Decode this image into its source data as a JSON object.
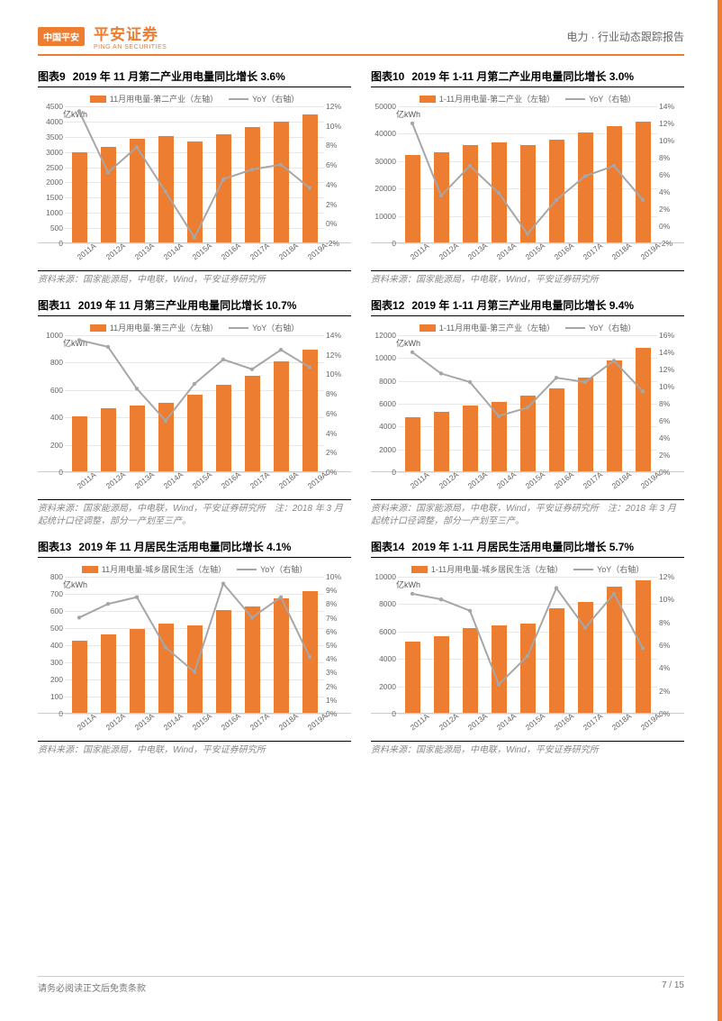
{
  "header": {
    "badge": "中国平安",
    "brand_cn": "平安证券",
    "brand_en": "PING AN SECURITIES",
    "right": "电力 · 行业动态跟踪报告"
  },
  "colors": {
    "accent": "#ed7d31",
    "line": "#a6a6a6",
    "grid": "#e8e8e8",
    "text": "#666"
  },
  "x_categories": [
    "2011A",
    "2012A",
    "2013A",
    "2014A",
    "2015A",
    "2016A",
    "2017A",
    "2018A",
    "2019A"
  ],
  "charts": [
    {
      "num": "图表9",
      "title": "2019 年 11 月第二产业用电量同比增长 3.6%",
      "legend_bar": "11月用电量-第二产业（左轴）",
      "legend_line": "YoY（右轴）",
      "unit": "亿kWh",
      "yl": {
        "min": 0,
        "max": 4500,
        "step": 500,
        "fmt": "{v}"
      },
      "yr": {
        "min": -2,
        "max": 12,
        "step": 2,
        "fmt": "{v}%"
      },
      "bars": [
        2950,
        3140,
        3400,
        3480,
        3320,
        3560,
        3800,
        3980,
        4200
      ],
      "line": [
        11.5,
        5.2,
        7.8,
        3.2,
        -1.5,
        4.5,
        5.5,
        6.0,
        3.6
      ],
      "source": "资料来源：国家能源局，中电联，Wind，平安证券研究所"
    },
    {
      "num": "图表10",
      "title": "2019 年 1-11 月第二产业用电量同比增长 3.0%",
      "legend_bar": "1-11月用电量-第二产业（左轴）",
      "legend_line": "YoY（右轴）",
      "unit": "亿kWh",
      "yl": {
        "min": 0,
        "max": 50000,
        "step": 10000,
        "fmt": "{v}"
      },
      "yr": {
        "min": -2,
        "max": 14,
        "step": 2,
        "fmt": "{v}%"
      },
      "bars": [
        32000,
        33000,
        35500,
        36500,
        35500,
        37500,
        40000,
        42500,
        44000
      ],
      "line": [
        12.0,
        3.5,
        7.0,
        3.8,
        -1.0,
        3.0,
        5.8,
        7.0,
        3.0
      ],
      "source": "资料来源：国家能源局，中电联，Wind，平安证券研究所"
    },
    {
      "num": "图表11",
      "title": "2019 年 11 月第三产业用电量同比增长 10.7%",
      "legend_bar": "11月用电量-第三产业（左轴）",
      "legend_line": "YoY（右轴）",
      "unit": "亿kWh",
      "yl": {
        "min": 0,
        "max": 1000,
        "step": 200,
        "fmt": "{v}"
      },
      "yr": {
        "min": 0,
        "max": 14,
        "step": 2,
        "fmt": "{v}%"
      },
      "bars": [
        400,
        460,
        480,
        500,
        560,
        630,
        700,
        800,
        890
      ],
      "line": [
        13.5,
        12.8,
        8.5,
        5.2,
        9.0,
        11.5,
        10.5,
        12.5,
        10.7
      ],
      "source": "资料来源：国家能源局，中电联，Wind，平安证券研究所　注：2018 年 3 月起统计口径调整，部分一产划至三产。"
    },
    {
      "num": "图表12",
      "title": "2019 年 1-11 月第三产业用电量同比增长 9.4%",
      "legend_bar": "1-11月用电量-第三产业（左轴）",
      "legend_line": "YoY（右轴）",
      "unit": "亿kWh",
      "yl": {
        "min": 0,
        "max": 12000,
        "step": 2000,
        "fmt": "{v}"
      },
      "yr": {
        "min": 0,
        "max": 16,
        "step": 2,
        "fmt": "{v}%"
      },
      "bars": [
        4700,
        5200,
        5800,
        6100,
        6600,
        7300,
        8200,
        9700,
        10800
      ],
      "line": [
        14.0,
        11.5,
        10.5,
        6.5,
        7.5,
        11.0,
        10.5,
        13.0,
        9.4
      ],
      "source": "资料来源：国家能源局，中电联，Wind，平安证券研究所　注：2018 年 3 月起统计口径调整，部分一产划至三产。"
    },
    {
      "num": "图表13",
      "title": "2019 年 11 月居民生活用电量同比增长 4.1%",
      "legend_bar": "11月用电量-城乡居民生活（左轴）",
      "legend_line": "YoY（右轴）",
      "unit": "亿kWh",
      "yl": {
        "min": 0,
        "max": 800,
        "step": 100,
        "fmt": "{v}"
      },
      "yr": {
        "min": 0,
        "max": 10,
        "step": 1,
        "fmt": "{v}%"
      },
      "bars": [
        420,
        460,
        490,
        520,
        510,
        600,
        620,
        670,
        710
      ],
      "line": [
        7.0,
        8.0,
        8.5,
        4.8,
        3.0,
        9.5,
        7.0,
        8.5,
        4.1
      ],
      "source": "资料来源：国家能源局，中电联，Wind，平安证券研究所"
    },
    {
      "num": "图表14",
      "title": "2019 年 1-11 月居民生活用电量同比增长 5.7%",
      "legend_bar": "1-11月用电量-城乡居民生活（左轴）",
      "legend_line": "YoY（右轴）",
      "unit": "亿kWh",
      "yl": {
        "min": 0,
        "max": 10000,
        "step": 2000,
        "fmt": "{v}"
      },
      "yr": {
        "min": 0,
        "max": 12,
        "step": 2,
        "fmt": "{v}%"
      },
      "bars": [
        5200,
        5600,
        6200,
        6400,
        6500,
        7600,
        8100,
        9200,
        9700
      ],
      "line": [
        10.5,
        10.0,
        9.0,
        2.5,
        5.0,
        11.0,
        7.5,
        10.5,
        5.7
      ],
      "source": "资料来源：国家能源局，中电联，Wind，平安证券研究所"
    }
  ],
  "footer": {
    "left": "请务必阅读正文后免责条款",
    "right": "7 / 15"
  }
}
